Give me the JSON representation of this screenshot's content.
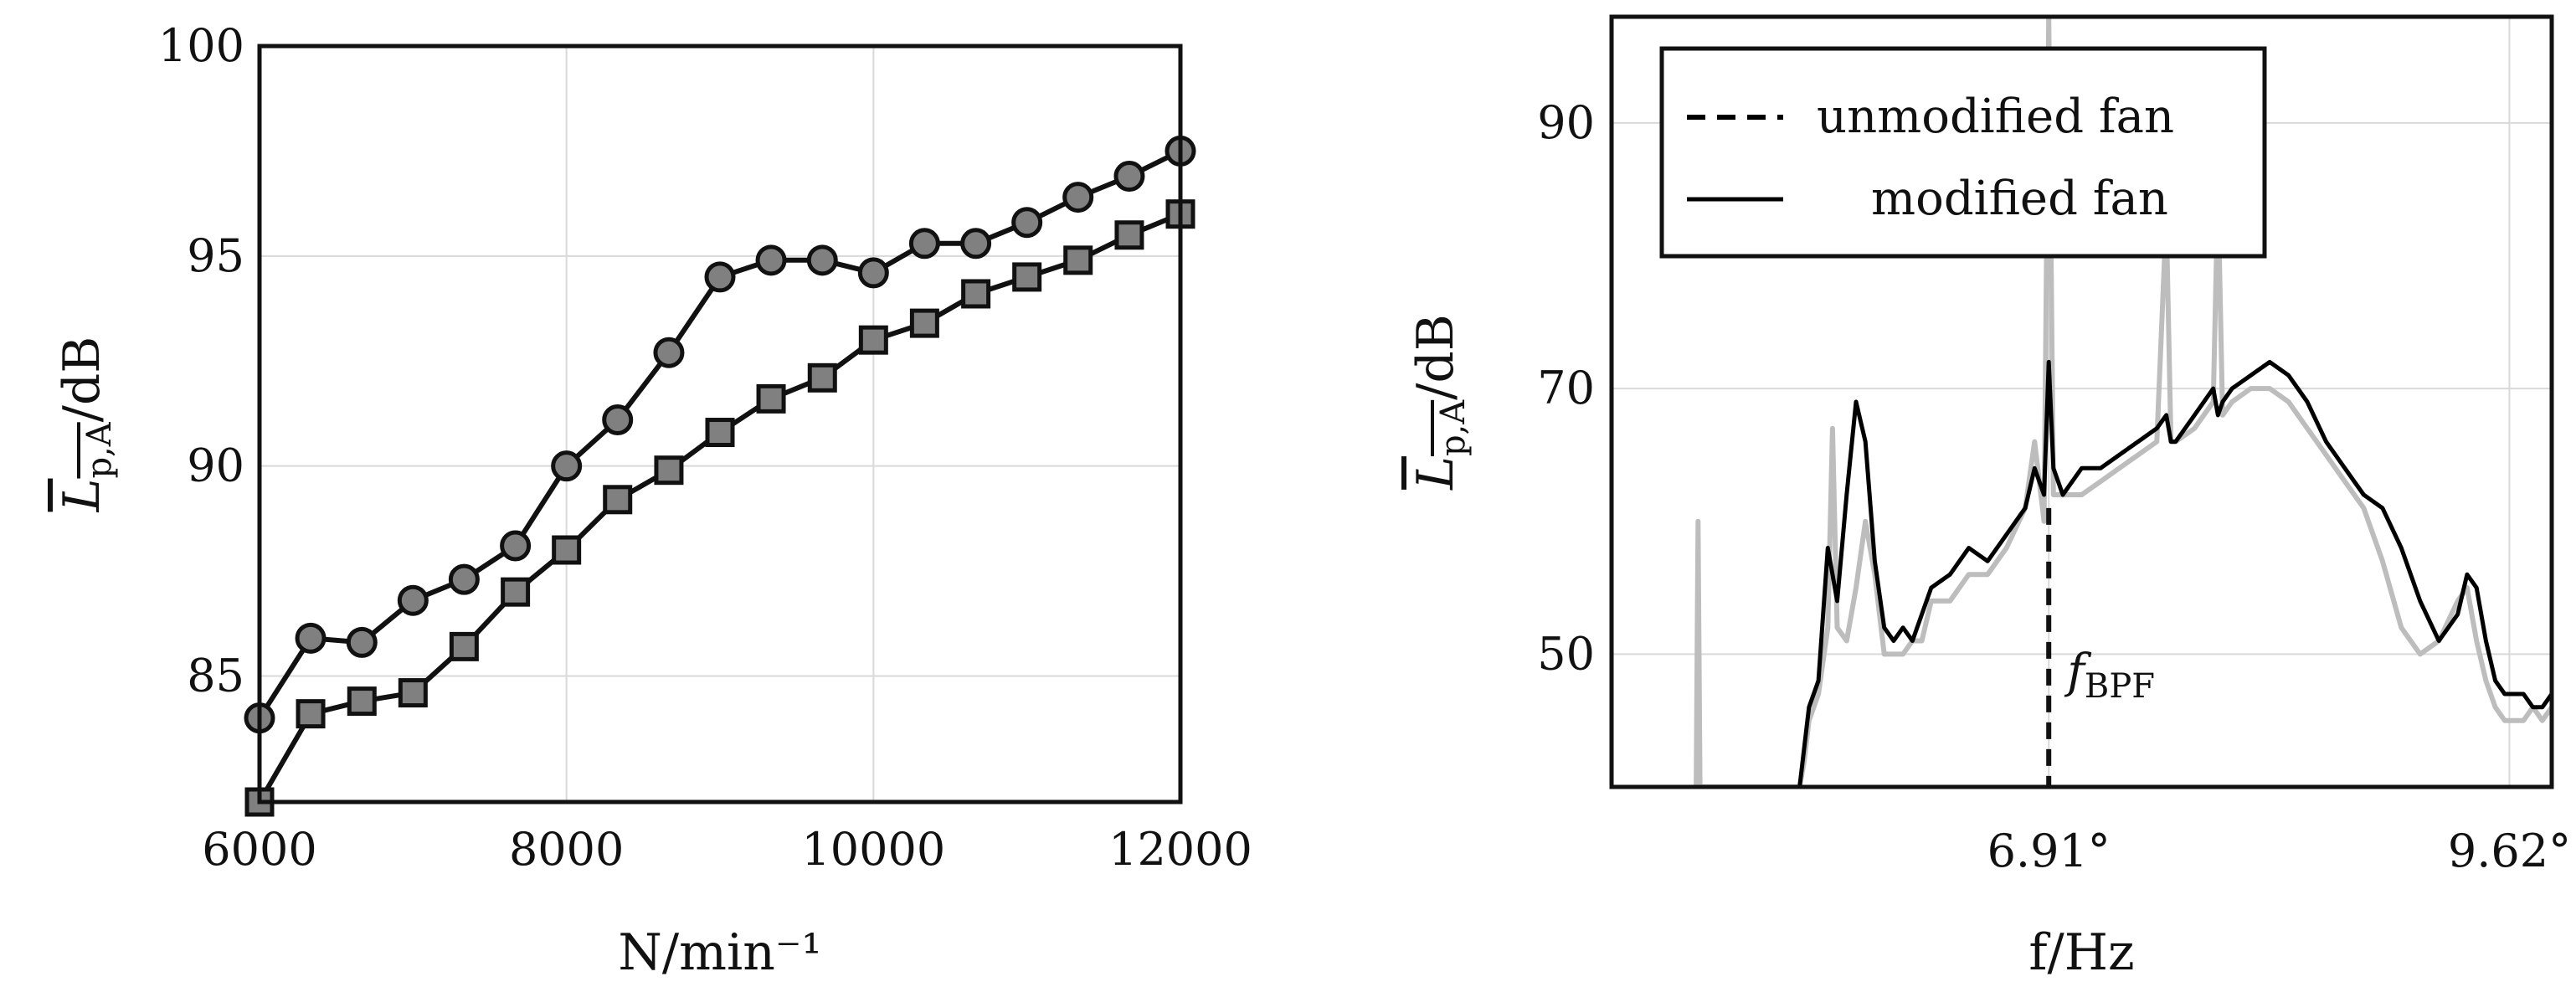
{
  "chart_data": [
    {
      "type": "line",
      "xlabel": "N/min⁻¹",
      "ylabel": "L̅p,A/dB",
      "xlim": [
        6000,
        12000
      ],
      "ylim": [
        82,
        100
      ],
      "xticks": [
        "6000",
        "8000",
        "10000",
        "12000"
      ],
      "yticks": [
        "85",
        "90",
        "95",
        "100"
      ],
      "grid": true,
      "x": [
        6000,
        6333,
        6667,
        7000,
        7333,
        7667,
        8000,
        8333,
        8667,
        9000,
        9333,
        9667,
        10000,
        10333,
        10667,
        11000,
        11333,
        11667,
        12000
      ],
      "series": [
        {
          "marker": "circle",
          "values": [
            84.0,
            85.9,
            85.8,
            86.8,
            87.3,
            88.1,
            90.0,
            91.1,
            92.7,
            94.5,
            94.9,
            94.9,
            94.6,
            95.3,
            95.3,
            95.8,
            96.4,
            96.9,
            97.5
          ]
        },
        {
          "marker": "square",
          "values": [
            82.0,
            84.1,
            84.4,
            84.6,
            85.7,
            87.0,
            88.0,
            89.2,
            89.9,
            90.8,
            91.6,
            92.1,
            93.0,
            93.4,
            94.1,
            94.5,
            94.9,
            95.5,
            96.0
          ]
        }
      ]
    },
    {
      "type": "line",
      "xlabel": "f/Hz",
      "ylabel": "L̅p,A/dB",
      "ylim": [
        40,
        98
      ],
      "xlim": [
        0,
        100
      ],
      "xticks": [
        {
          "value": 46.5,
          "label": "6.91°"
        },
        {
          "value": 95.5,
          "label": "9.62°"
        }
      ],
      "yticks": [
        "50",
        "70",
        "90"
      ],
      "grid": true,
      "legend": {
        "position": "top-left"
      },
      "annotation": {
        "x": 46.5,
        "label": "f",
        "subscript": "BPF"
      },
      "series": [
        {
          "name": "unmodified fan",
          "style": "dashed",
          "color": "#000000",
          "x": [
            9,
            9.1,
            9.2,
            9.4,
            20,
            20.5,
            21,
            22,
            23,
            24,
            25,
            26,
            27,
            28,
            29,
            30,
            31,
            32,
            33,
            34,
            36,
            38,
            40,
            42,
            44,
            45,
            46,
            46.5,
            47,
            48,
            50,
            52,
            54,
            56,
            58,
            59,
            59.5,
            60,
            62,
            64,
            64.5,
            65,
            66,
            68,
            70,
            72,
            74,
            76,
            78,
            80,
            82,
            84,
            86,
            88,
            90,
            91,
            92,
            93,
            94,
            95,
            96,
            97,
            98,
            99,
            100
          ],
          "values": [
            40,
            40,
            40,
            40,
            40,
            43,
            46,
            48,
            58,
            54,
            62,
            69,
            66,
            57,
            52,
            51,
            52,
            51,
            53,
            55,
            56,
            58,
            57,
            59,
            61,
            64,
            62,
            72,
            64,
            62,
            64,
            64,
            65,
            66,
            67,
            68,
            66,
            66,
            68,
            70,
            68,
            69,
            70,
            71,
            72,
            71,
            69,
            66,
            64,
            62,
            61,
            58,
            54,
            51,
            53,
            56,
            55,
            51,
            48,
            47,
            47,
            47,
            46,
            46,
            47
          ]
        },
        {
          "name": "modified fan",
          "style": "solid",
          "color": "#bdbdbd",
          "x": [
            9,
            9.2,
            9.4,
            9.6,
            9.8,
            20,
            20.5,
            21,
            22,
            23,
            23.5,
            24,
            25,
            26,
            27,
            28,
            29,
            30,
            31,
            32,
            33,
            34,
            36,
            38,
            40,
            42,
            44,
            45,
            46,
            46.5,
            47,
            48,
            50,
            52,
            54,
            56,
            58,
            59,
            59.5,
            60,
            62,
            64,
            64.5,
            65,
            66,
            68,
            70,
            72,
            74,
            76,
            78,
            80,
            82,
            84,
            86,
            88,
            90,
            91,
            92,
            93,
            94,
            95,
            96,
            97,
            98,
            99,
            100
          ],
          "values": [
            40,
            60,
            40,
            40,
            40,
            40,
            42,
            45,
            47,
            52,
            67,
            52,
            51,
            55,
            60,
            56,
            50,
            50,
            50,
            51,
            51,
            54,
            54,
            56,
            56,
            58,
            61,
            66,
            60,
            98,
            62,
            62,
            62,
            63,
            64,
            65,
            66,
            83,
            66,
            66,
            67,
            69,
            85,
            68,
            69,
            70,
            70,
            69,
            67,
            65,
            63,
            61,
            57,
            52,
            50,
            51,
            54,
            55,
            51,
            48,
            46,
            45,
            45,
            45,
            46,
            45,
            46
          ]
        }
      ]
    }
  ]
}
